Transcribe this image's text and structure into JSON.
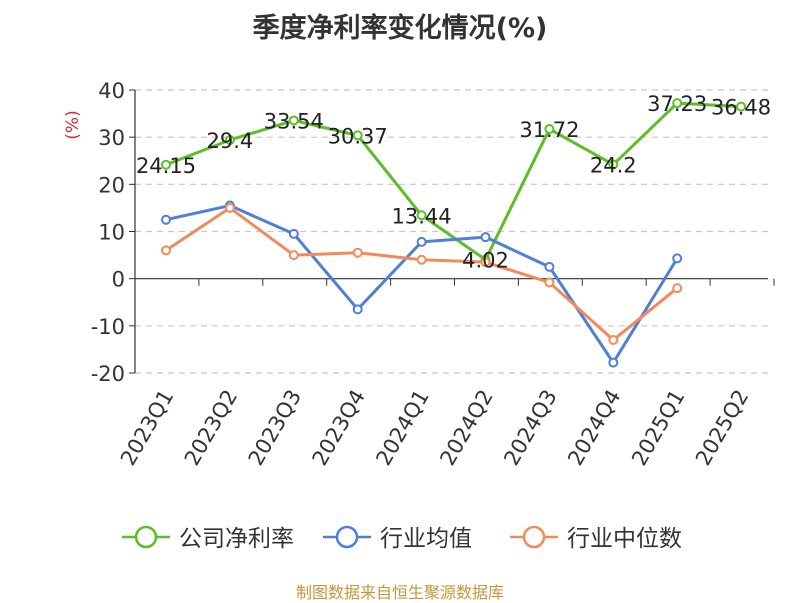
{
  "chart_data": {
    "type": "line",
    "title": "季度净利率变化情况(%)",
    "ylabel": "(%)",
    "xlabel": "",
    "ylim": [
      -20,
      40
    ],
    "yticks": [
      -20,
      -10,
      0,
      10,
      20,
      30,
      40
    ],
    "grid": true,
    "legend_position": "bottom",
    "categories": [
      "2023Q1",
      "2023Q2",
      "2023Q3",
      "2023Q4",
      "2024Q1",
      "2024Q2",
      "2024Q3",
      "2024Q4",
      "2025Q1",
      "2025Q2"
    ],
    "series": [
      {
        "name": "公司净利率",
        "color": "#5cbf26",
        "values": [
          24.15,
          29.4,
          33.54,
          30.37,
          13.44,
          4.02,
          31.72,
          24.2,
          37.23,
          36.48
        ],
        "labels": [
          "24.15",
          "29.4",
          "33.54",
          "30.37",
          "13.44",
          "4.02",
          "31.72",
          "24.2",
          "37.23",
          "36.48"
        ]
      },
      {
        "name": "行业均值",
        "color": "#4f7fd9",
        "values": [
          12.5,
          15.5,
          9.5,
          -6.5,
          7.8,
          8.8,
          2.5,
          -17.8,
          4.3,
          null
        ]
      },
      {
        "name": "行业中位数",
        "color": "#f28a5a",
        "values": [
          6.0,
          15.0,
          5.0,
          5.5,
          4.0,
          3.5,
          -0.8,
          -13.0,
          -2.0,
          null
        ]
      }
    ]
  },
  "footer": {
    "source": "制图数据来自恒生聚源数据库"
  }
}
